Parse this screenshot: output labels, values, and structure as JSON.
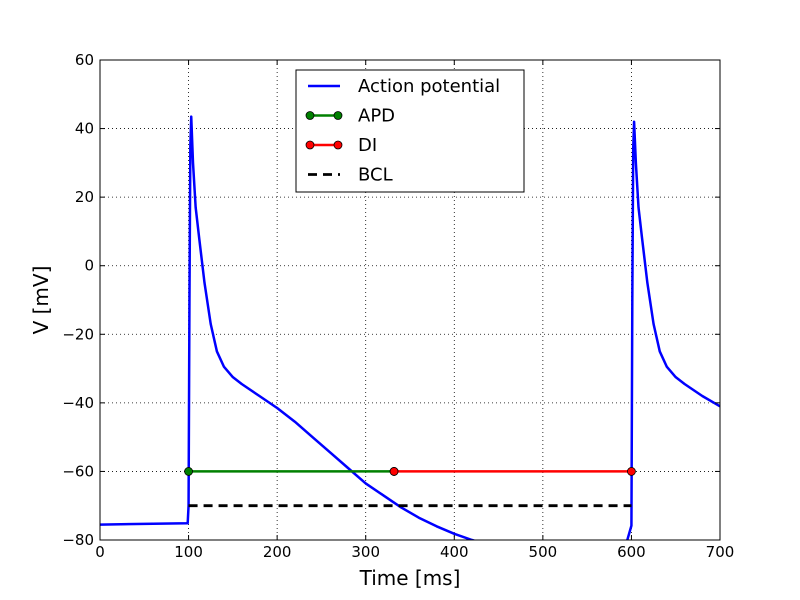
{
  "chart_data": {
    "type": "line",
    "title": "",
    "xlabel": "Time [ms]",
    "ylabel": "V [mV]",
    "xlim": [
      0,
      700
    ],
    "ylim": [
      -80,
      60
    ],
    "xticks": [
      0,
      100,
      200,
      300,
      400,
      500,
      600,
      700
    ],
    "yticks": [
      -80,
      -60,
      -40,
      -20,
      0,
      20,
      40,
      60
    ],
    "xtick_labels": [
      "0",
      "100",
      "200",
      "300",
      "400",
      "500",
      "600",
      "700"
    ],
    "ytick_labels": [
      "−80",
      "−60",
      "−40",
      "−20",
      "0",
      "20",
      "40",
      "60"
    ],
    "grid": true,
    "legend_position": "top-center",
    "series": [
      {
        "name": "Action potential",
        "color": "#0000ff",
        "style": "solid",
        "x": [
          0,
          50,
          99,
          100,
          101,
          102,
          103,
          105,
          108,
          112,
          118,
          125,
          132,
          140,
          150,
          160,
          180,
          200,
          220,
          240,
          260,
          280,
          300,
          320,
          340,
          360,
          380,
          400,
          420,
          440,
          460,
          480,
          500,
          530,
          560,
          590,
          600,
          601,
          602,
          603,
          605,
          608,
          612,
          618,
          625,
          632,
          640,
          650,
          660,
          680,
          700
        ],
        "y": [
          -75.5,
          -75.3,
          -75.1,
          -70,
          -10,
          35,
          43.5,
          30,
          17,
          8,
          -5,
          -17,
          -25,
          -29.5,
          -32.5,
          -34.5,
          -38,
          -41.5,
          -45.5,
          -50,
          -54.5,
          -59,
          -63.5,
          -67,
          -70.5,
          -73.5,
          -76,
          -78.2,
          -80,
          -81.5,
          -82.6,
          -83.3,
          -83.8,
          -84.2,
          -84.5,
          -84.8,
          -75.8,
          -10,
          34,
          42,
          30,
          17,
          8,
          -5,
          -17,
          -25,
          -29.5,
          -32.5,
          -34.5,
          -38,
          -41
        ]
      },
      {
        "name": "APD",
        "color": "#008000",
        "style": "solid-marker",
        "x": [
          100,
          332
        ],
        "y": [
          -60,
          -60
        ]
      },
      {
        "name": "DI",
        "color": "#ff0000",
        "style": "solid-marker",
        "x": [
          332,
          600
        ],
        "y": [
          -60,
          -60
        ]
      },
      {
        "name": "BCL",
        "color": "#000000",
        "style": "dashed",
        "x": [
          100,
          600
        ],
        "y": [
          -70,
          -70
        ]
      }
    ]
  }
}
